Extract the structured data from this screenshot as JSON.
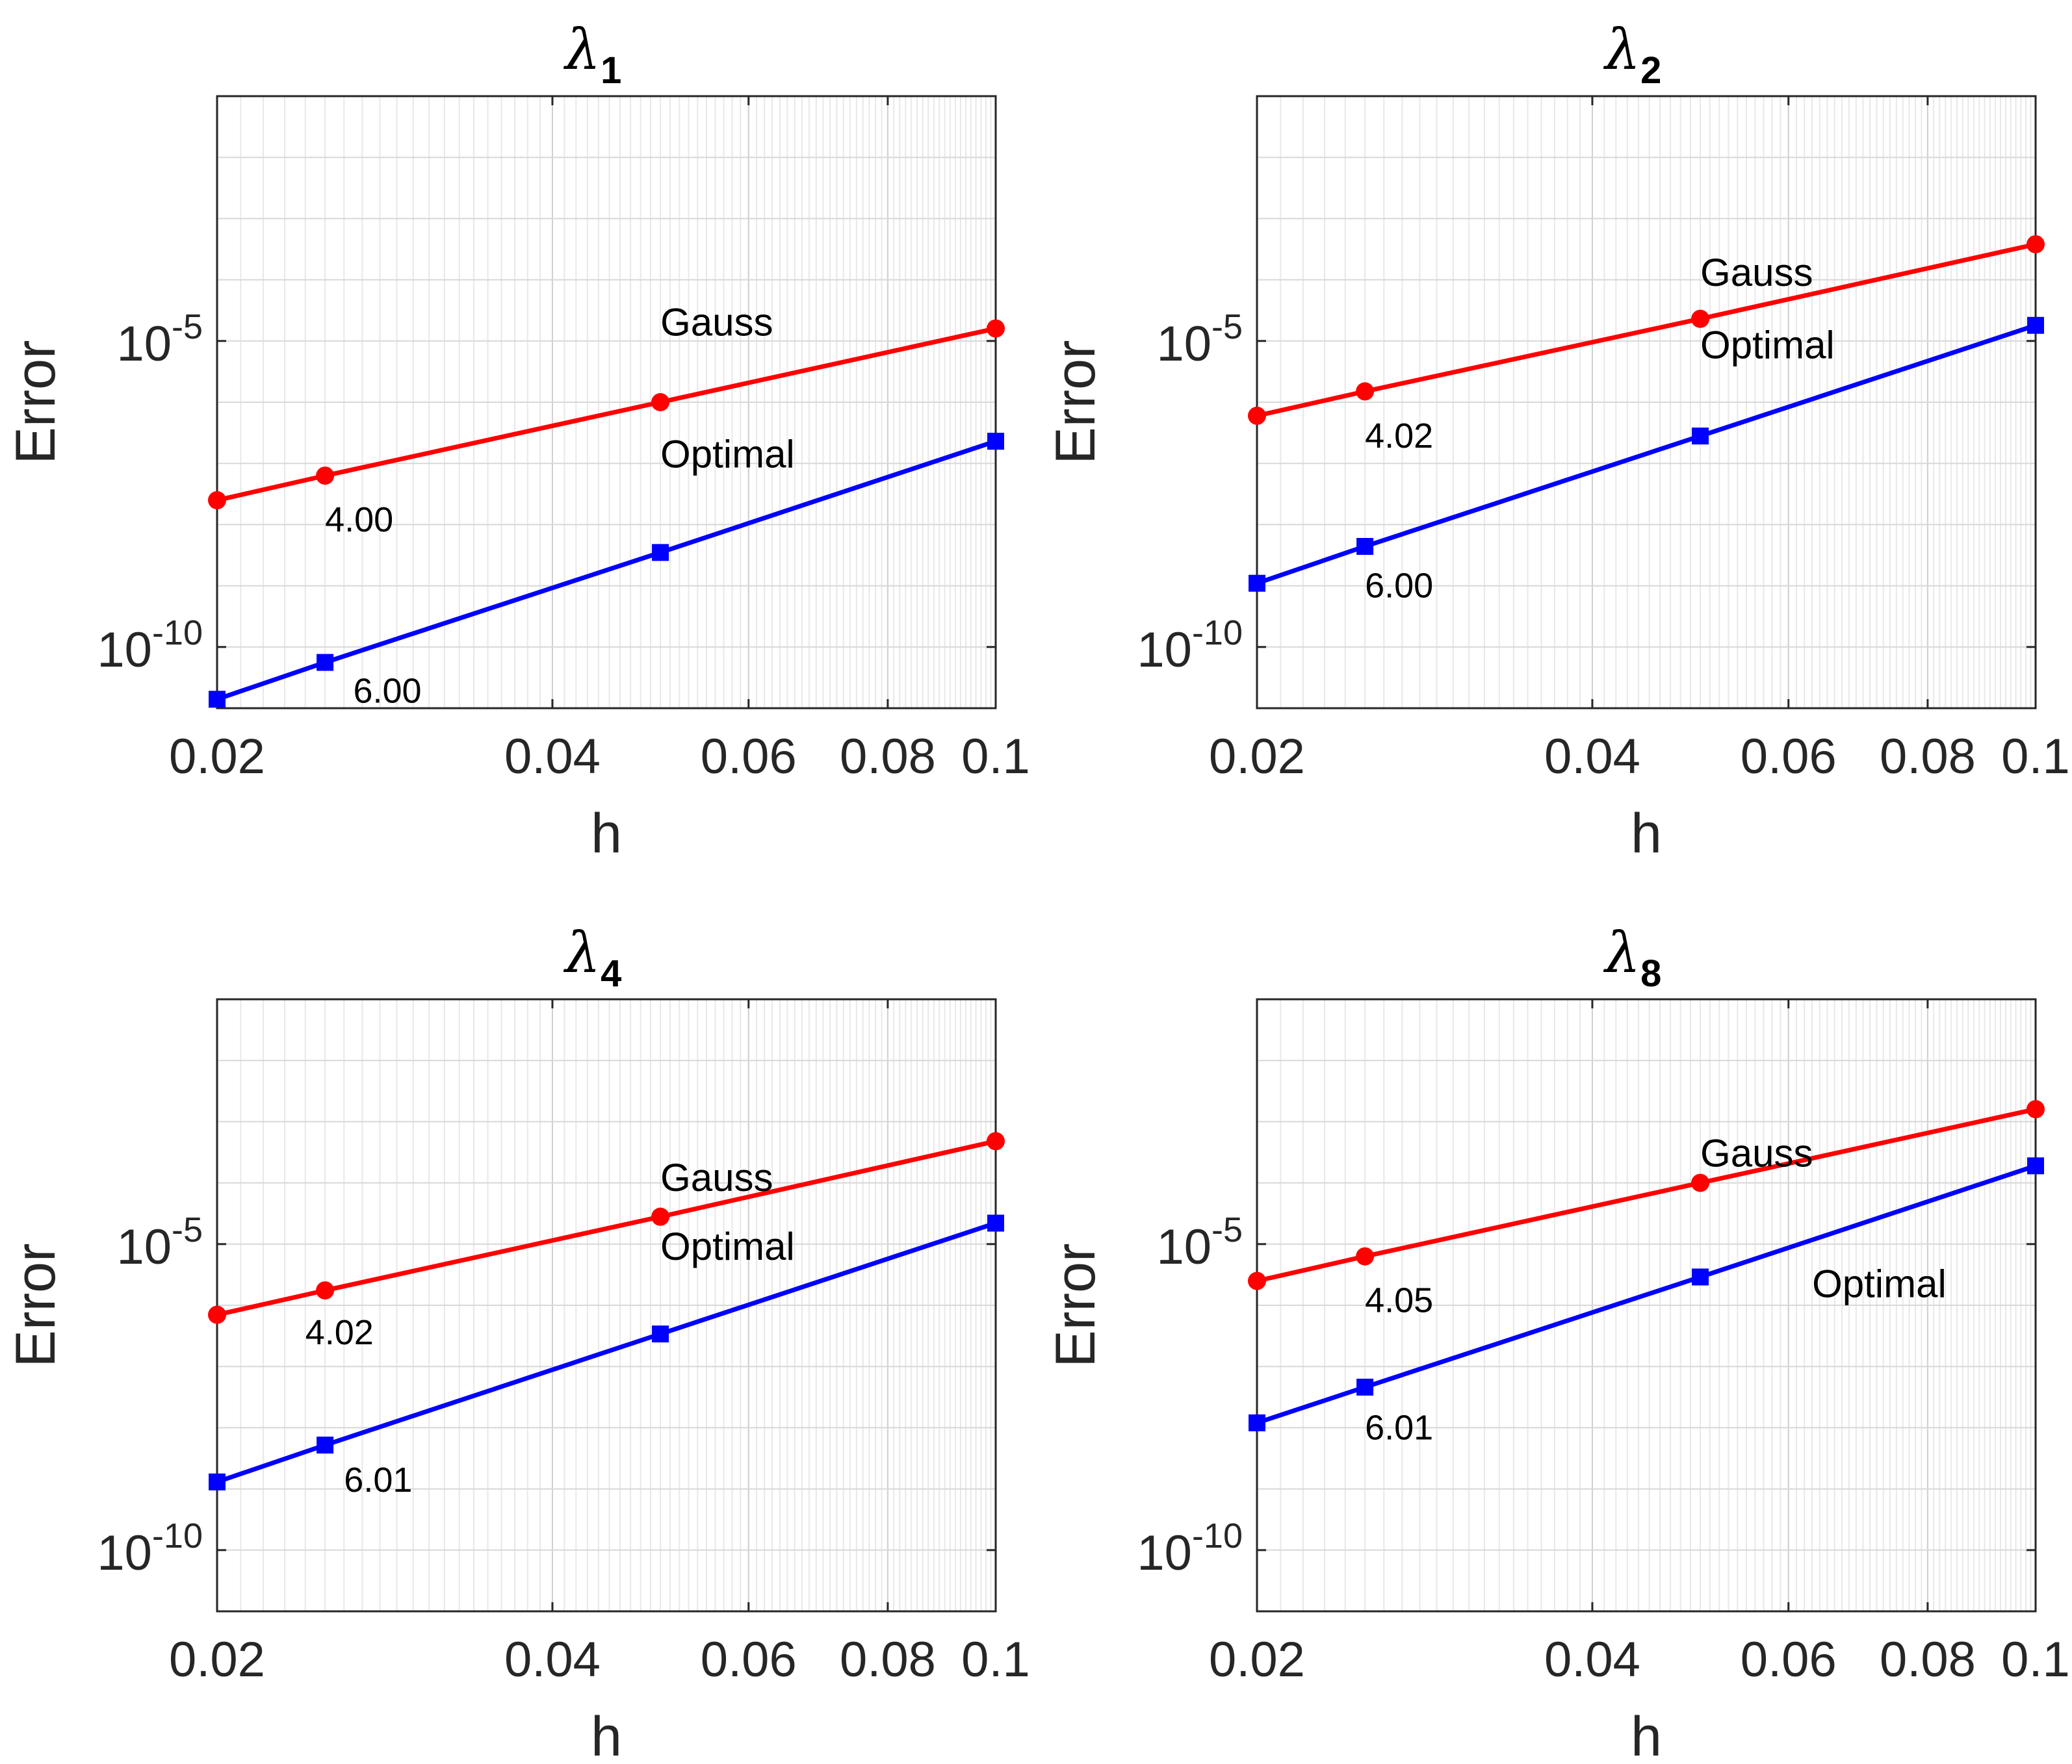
{
  "chart_data": [
    {
      "type": "line",
      "title": "λ",
      "title_subscript": "1",
      "xlabel": "h",
      "ylabel": "Error",
      "xscale": "log",
      "yscale": "log",
      "xlim": [
        0.02,
        0.1
      ],
      "ylim": [
        1e-11,
        0.1
      ],
      "xticks": [
        0.02,
        0.04,
        0.06,
        0.08,
        0.1
      ],
      "xtick_labels": [
        "0.02",
        "0.04",
        "0.06",
        "0.08",
        "0.1"
      ],
      "yticks": [
        1e-10,
        1e-05
      ],
      "ytick_labels": [
        {
          "base": "10",
          "exp": "-10"
        },
        {
          "base": "10",
          "exp": "-5"
        }
      ],
      "grid": true,
      "x": [
        0.02,
        0.025,
        0.05,
        0.1
      ],
      "series": [
        {
          "name": "Gauss",
          "color": "#ff0000",
          "marker": "circle",
          "values": [
            2.5e-08,
            6.3e-08,
            1e-06,
            1.6e-05
          ],
          "label_at": [
            0.05,
            2e-05
          ],
          "rate": "4.00",
          "rate_at": [
            0.025,
            1.2e-08
          ]
        },
        {
          "name": "Optimal",
          "color": "#0000ff",
          "marker": "square",
          "values": [
            1.4e-11,
            5.6e-11,
            3.5e-09,
            2.3e-07
          ],
          "label_at": [
            0.05,
            1.4e-07
          ],
          "rate": "6.00",
          "rate_at": [
            0.0265,
            1.9e-11
          ]
        }
      ]
    },
    {
      "type": "line",
      "title": "λ",
      "title_subscript": "2",
      "xlabel": "h",
      "ylabel": "Error",
      "xscale": "log",
      "yscale": "log",
      "xlim": [
        0.02,
        0.1
      ],
      "ylim": [
        1e-11,
        0.1
      ],
      "xticks": [
        0.02,
        0.04,
        0.06,
        0.08,
        0.1
      ],
      "xtick_labels": [
        "0.02",
        "0.04",
        "0.06",
        "0.08",
        "0.1"
      ],
      "yticks": [
        1e-10,
        1e-05
      ],
      "ytick_labels": [
        {
          "base": "10",
          "exp": "-10"
        },
        {
          "base": "10",
          "exp": "-5"
        }
      ],
      "grid": true,
      "x": [
        0.02,
        0.025,
        0.05,
        0.1
      ],
      "series": [
        {
          "name": "Gauss",
          "color": "#ff0000",
          "marker": "circle",
          "values": [
            6e-07,
            1.5e-06,
            2.3e-05,
            0.00038
          ],
          "label_at": [
            0.05,
            0.00013
          ],
          "rate": "4.02",
          "rate_at": [
            0.025,
            2.8e-07
          ]
        },
        {
          "name": "Optimal",
          "color": "#0000ff",
          "marker": "square",
          "values": [
            1.1e-09,
            4.4e-09,
            2.8e-07,
            1.8e-05
          ],
          "label_at": [
            0.05,
            8.5e-06
          ],
          "rate": "6.00",
          "rate_at": [
            0.025,
            1e-09
          ]
        }
      ]
    },
    {
      "type": "line",
      "title": "λ",
      "title_subscript": "4",
      "xlabel": "h",
      "ylabel": "Error",
      "xscale": "log",
      "yscale": "log",
      "xlim": [
        0.02,
        0.1
      ],
      "ylim": [
        1e-11,
        0.1
      ],
      "xticks": [
        0.02,
        0.04,
        0.06,
        0.08,
        0.1
      ],
      "xtick_labels": [
        "0.02",
        "0.04",
        "0.06",
        "0.08",
        "0.1"
      ],
      "yticks": [
        1e-10,
        1e-05
      ],
      "ytick_labels": [
        {
          "base": "10",
          "exp": "-10"
        },
        {
          "base": "10",
          "exp": "-5"
        }
      ],
      "grid": true,
      "x": [
        0.02,
        0.025,
        0.05,
        0.1
      ],
      "series": [
        {
          "name": "Gauss",
          "color": "#ff0000",
          "marker": "circle",
          "values": [
            7e-07,
            1.75e-06,
            2.8e-05,
            0.00048
          ],
          "label_at": [
            0.05,
            0.00012
          ],
          "rate": "4.02",
          "rate_at": [
            0.024,
            3.6e-07
          ]
        },
        {
          "name": "Optimal",
          "color": "#0000ff",
          "marker": "square",
          "values": [
            1.3e-09,
            5.2e-09,
            3.4e-07,
            2.2e-05
          ],
          "label_at": [
            0.05,
            9e-06
          ],
          "rate": "6.01",
          "rate_at": [
            0.026,
            1.4e-09
          ]
        }
      ]
    },
    {
      "type": "line",
      "title": "λ",
      "title_subscript": "8",
      "xlabel": "h",
      "ylabel": "Error",
      "xscale": "log",
      "yscale": "log",
      "xlim": [
        0.02,
        0.1
      ],
      "ylim": [
        1e-11,
        0.1
      ],
      "xticks": [
        0.02,
        0.04,
        0.06,
        0.08,
        0.1
      ],
      "xtick_labels": [
        "0.02",
        "0.04",
        "0.06",
        "0.08",
        "0.1"
      ],
      "yticks": [
        1e-10,
        1e-05
      ],
      "ytick_labels": [
        {
          "base": "10",
          "exp": "-10"
        },
        {
          "base": "10",
          "exp": "-5"
        }
      ],
      "grid": true,
      "x": [
        0.02,
        0.025,
        0.05,
        0.1
      ],
      "series": [
        {
          "name": "Gauss",
          "color": "#ff0000",
          "marker": "circle",
          "values": [
            2.5e-06,
            6.3e-06,
            0.0001,
            0.0016
          ],
          "label_at": [
            0.05,
            0.0003
          ],
          "rate": "4.05",
          "rate_at": [
            0.025,
            1.2e-06
          ]
        },
        {
          "name": "Optimal",
          "color": "#0000ff",
          "marker": "square",
          "values": [
            1.2e-08,
            4.6e-08,
            2.9e-06,
            0.00019
          ],
          "label_at": [
            0.063,
            2.2e-06
          ],
          "rate": "6.01",
          "rate_at": [
            0.025,
            1e-08
          ]
        }
      ]
    }
  ]
}
